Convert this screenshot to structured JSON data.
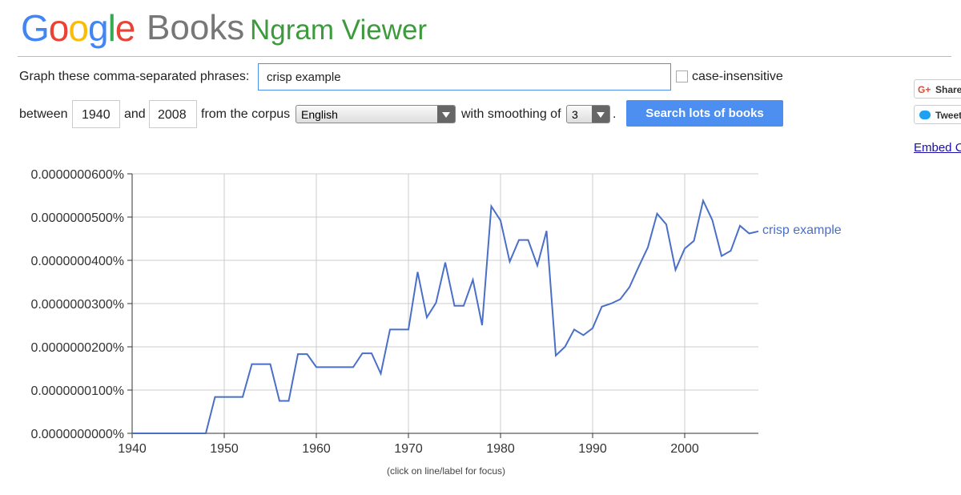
{
  "header": {
    "logo_letters": [
      "G",
      "o",
      "o",
      "g",
      "l",
      "e"
    ],
    "books": "Books",
    "title": "Ngram Viewer"
  },
  "form": {
    "phrases_label": "Graph these comma-separated phrases:",
    "phrases": "crisp example",
    "case_insensitive": "case-insensitive",
    "between": "between",
    "year_start": "1940",
    "and": "and",
    "year_end": "2008",
    "corpus_label": "from the corpus",
    "corpus": "English",
    "smoothing_label": "with smoothing of",
    "smoothing": "3",
    "period": ".",
    "search_button": "Search lots of books"
  },
  "social": {
    "share": "Share",
    "tweet": "Tweet",
    "embed": "Embed Chart"
  },
  "chart_data": {
    "type": "line",
    "x": [
      1940,
      1941,
      1942,
      1943,
      1944,
      1945,
      1946,
      1947,
      1948,
      1949,
      1950,
      1951,
      1952,
      1953,
      1954,
      1955,
      1956,
      1957,
      1958,
      1959,
      1960,
      1961,
      1962,
      1963,
      1964,
      1965,
      1966,
      1967,
      1968,
      1969,
      1970,
      1971,
      1972,
      1973,
      1974,
      1975,
      1976,
      1977,
      1978,
      1979,
      1980,
      1981,
      1982,
      1983,
      1984,
      1985,
      1986,
      1987,
      1988,
      1989,
      1990,
      1991,
      1992,
      1993,
      1994,
      1995,
      1996,
      1997,
      1998,
      1999,
      2000,
      2001,
      2002,
      2003,
      2004,
      2005,
      2006,
      2007,
      2008
    ],
    "series": [
      {
        "name": "crisp example",
        "color": "#4a6fc8",
        "values": [
          0,
          0,
          0,
          0,
          0,
          0,
          0,
          0,
          0,
          8.4e-09,
          8.4e-09,
          8.4e-09,
          8.4e-09,
          1.6e-08,
          1.6e-08,
          1.6e-08,
          7.5e-09,
          7.5e-09,
          1.83e-08,
          1.83e-08,
          1.53e-08,
          1.53e-08,
          1.53e-08,
          1.53e-08,
          1.53e-08,
          1.85e-08,
          1.85e-08,
          1.38e-08,
          2.4e-08,
          2.4e-08,
          2.4e-08,
          3.73e-08,
          2.68e-08,
          3.02e-08,
          3.95e-08,
          2.95e-08,
          2.95e-08,
          3.55e-08,
          2.5e-08,
          5.25e-08,
          4.92e-08,
          3.97e-08,
          4.47e-08,
          4.47e-08,
          3.88e-08,
          4.68e-08,
          1.8e-08,
          2e-08,
          2.4e-08,
          2.27e-08,
          2.43e-08,
          2.93e-08,
          3e-08,
          3.1e-08,
          3.38e-08,
          3.85e-08,
          4.3e-08,
          5.08e-08,
          4.83e-08,
          3.78e-08,
          4.27e-08,
          4.45e-08,
          5.38e-08,
          4.93e-08,
          4.1e-08,
          4.22e-08,
          4.8e-08,
          4.62e-08,
          4.67e-08
        ]
      }
    ],
    "xlim": [
      1940,
      2008
    ],
    "xticks": [
      1940,
      1950,
      1960,
      1970,
      1980,
      1990,
      2000
    ],
    "ylim": [
      0,
      6e-08
    ],
    "yticks": [
      {
        "value": 0,
        "label": "0.0000000000%"
      },
      {
        "value": 1e-08,
        "label": "0.0000000100%"
      },
      {
        "value": 2e-08,
        "label": "0.0000000200%"
      },
      {
        "value": 3e-08,
        "label": "0.0000000300%"
      },
      {
        "value": 4e-08,
        "label": "0.0000000400%"
      },
      {
        "value": 5e-08,
        "label": "0.0000000500%"
      },
      {
        "value": 6e-08,
        "label": "0.0000000600%"
      }
    ],
    "grid": true,
    "note": "(click on line/label for focus)"
  }
}
